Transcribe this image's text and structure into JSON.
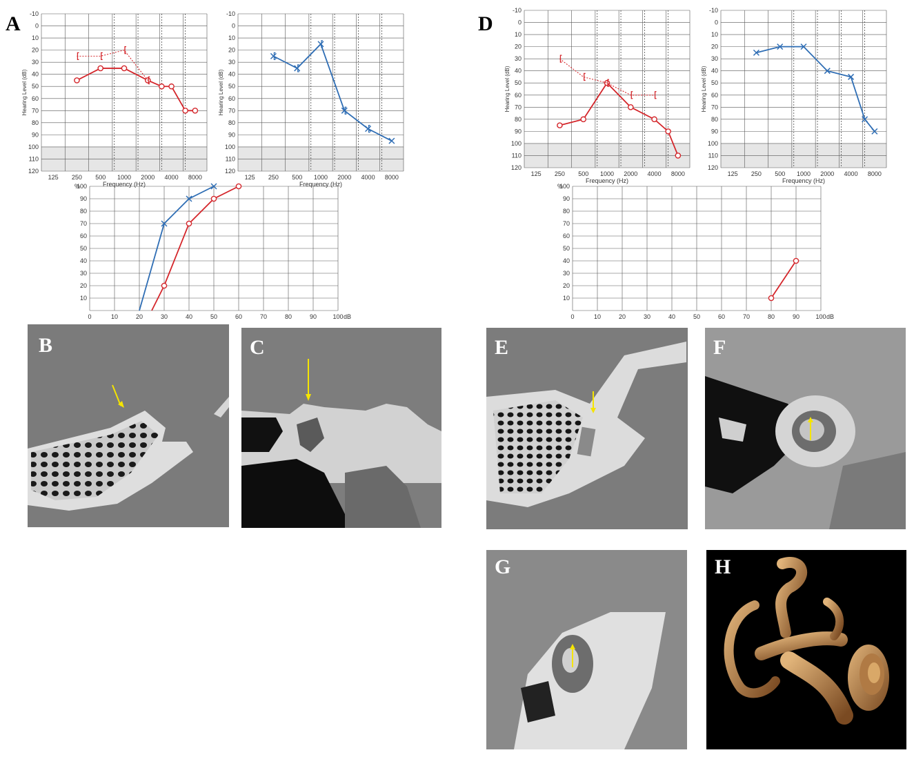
{
  "panel_labels": {
    "A": "A",
    "B": "B",
    "C": "C",
    "D": "D",
    "E": "E",
    "F": "F",
    "G": "G",
    "H": "H"
  },
  "audiogram_axes": {
    "freq_ticks": [
      "125",
      "250",
      "500",
      "1000",
      "2000",
      "4000",
      "8000"
    ],
    "db_ticks": [
      "-10",
      "0",
      "10",
      "20",
      "30",
      "40",
      "50",
      "60",
      "70",
      "80",
      "90",
      "100",
      "110",
      "120"
    ],
    "xlabel": "Frequency (Hz)",
    "ylabel": "Hearing Level (dB)"
  },
  "speech_axes": {
    "x_ticks": [
      "0",
      "10",
      "20",
      "30",
      "40",
      "50",
      "60",
      "70",
      "80",
      "90",
      "100"
    ],
    "y_ticks": [
      "10",
      "20",
      "30",
      "40",
      "50",
      "60",
      "70",
      "80",
      "90",
      "100"
    ],
    "y_unit": "%",
    "x_unit": "dB"
  },
  "colors": {
    "right_ear": "#d4252a",
    "left_ear": "#2e6db4",
    "grid": "#555555",
    "shade": "#e6e6e6"
  },
  "chart_data": [
    {
      "panel": "A-right",
      "type": "line",
      "x": [
        250,
        500,
        1000,
        2000,
        3000,
        4000,
        6000,
        8000
      ],
      "xscale": "log",
      "yreverse": true,
      "ylim": [
        -10,
        120
      ],
      "shaded_band": [
        100,
        120
      ],
      "series": [
        {
          "marker": "circle",
          "line": "solid",
          "color": "#d4252a",
          "points": [
            [
              250,
              45
            ],
            [
              500,
              35
            ],
            [
              1000,
              35
            ],
            [
              2000,
              45
            ],
            [
              3000,
              50
            ],
            [
              4000,
              50
            ],
            [
              6000,
              70
            ],
            [
              8000,
              70
            ]
          ]
        },
        {
          "marker": "bracket",
          "line": "dotted",
          "color": "#d4252a",
          "points": [
            [
              250,
              25
            ],
            [
              500,
              25
            ],
            [
              1000,
              20
            ],
            [
              2000,
              45
            ]
          ]
        }
      ]
    },
    {
      "panel": "A-left",
      "type": "line",
      "xscale": "log",
      "yreverse": true,
      "ylim": [
        -10,
        120
      ],
      "shaded_band": [
        100,
        120
      ],
      "series": [
        {
          "marker": "x",
          "line": "solid",
          "color": "#2e6db4",
          "points": [
            [
              250,
              25
            ],
            [
              500,
              35
            ],
            [
              1000,
              15
            ],
            [
              2000,
              70
            ],
            [
              4000,
              85
            ],
            [
              8000,
              95
            ]
          ]
        },
        {
          "marker": "bracket",
          "line": "none",
          "color": "#2e6db4",
          "points": [
            [
              250,
              25
            ],
            [
              500,
              35
            ],
            [
              1000,
              15
            ],
            [
              2000,
              70
            ],
            [
              4000,
              85
            ]
          ]
        }
      ]
    },
    {
      "panel": "A-speech",
      "type": "line",
      "xlim": [
        0,
        100
      ],
      "ylim": [
        0,
        100
      ],
      "series": [
        {
          "marker": "x",
          "color": "#2e6db4",
          "points": [
            [
              20,
              0
            ],
            [
              30,
              70
            ],
            [
              40,
              90
            ],
            [
              50,
              100
            ]
          ]
        },
        {
          "marker": "circle",
          "color": "#d4252a",
          "points": [
            [
              25,
              0
            ],
            [
              30,
              20
            ],
            [
              40,
              70
            ],
            [
              50,
              90
            ],
            [
              60,
              100
            ]
          ]
        }
      ]
    },
    {
      "panel": "D-right",
      "type": "line",
      "xscale": "log",
      "yreverse": true,
      "ylim": [
        -10,
        120
      ],
      "shaded_band": [
        100,
        120
      ],
      "series": [
        {
          "marker": "circle",
          "line": "solid",
          "color": "#d4252a",
          "points": [
            [
              250,
              85
            ],
            [
              500,
              80
            ],
            [
              1000,
              50
            ],
            [
              2000,
              70
            ],
            [
              4000,
              80
            ],
            [
              6000,
              90
            ],
            [
              8000,
              110
            ]
          ]
        },
        {
          "marker": "bracket",
          "line": "dotted",
          "color": "#d4252a",
          "points": [
            [
              250,
              30
            ],
            [
              500,
              45
            ],
            [
              1000,
              50
            ],
            [
              2000,
              60
            ],
            [
              4000,
              60
            ]
          ]
        }
      ]
    },
    {
      "panel": "D-left",
      "type": "line",
      "xscale": "log",
      "yreverse": true,
      "ylim": [
        -10,
        120
      ],
      "shaded_band": [
        100,
        120
      ],
      "series": [
        {
          "marker": "x",
          "line": "solid",
          "color": "#2e6db4",
          "points": [
            [
              250,
              25
            ],
            [
              500,
              20
            ],
            [
              1000,
              20
            ],
            [
              2000,
              40
            ],
            [
              4000,
              45
            ],
            [
              6000,
              80
            ],
            [
              8000,
              90
            ]
          ]
        }
      ]
    },
    {
      "panel": "D-speech",
      "type": "line",
      "xlim": [
        0,
        100
      ],
      "ylim": [
        0,
        100
      ],
      "series": [
        {
          "marker": "circle",
          "color": "#d4252a",
          "points": [
            [
              80,
              10
            ],
            [
              90,
              40
            ]
          ]
        }
      ]
    }
  ]
}
